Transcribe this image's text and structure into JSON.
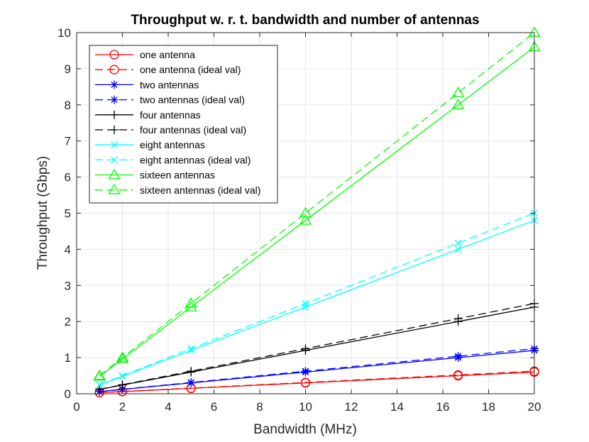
{
  "chart_data": {
    "type": "line",
    "title": "Throughput w. r. t. bandwidth and number of antennas",
    "xlabel": "Bandwidth (MHz)",
    "ylabel": "Throughput (Gbps)",
    "xlim": [
      0,
      20
    ],
    "ylim": [
      0,
      10
    ],
    "xticks": [
      "0",
      "2",
      "4",
      "6",
      "8",
      "10",
      "12",
      "14",
      "16",
      "18",
      "20"
    ],
    "yticks": [
      "0",
      "1",
      "2",
      "3",
      "4",
      "5",
      "6",
      "7",
      "8",
      "9",
      "10"
    ],
    "grid": true,
    "legend_position": "top-left",
    "x": [
      1,
      2,
      5,
      10,
      16.67,
      20
    ],
    "series": [
      {
        "name": "one antenna",
        "color": "#ff0000",
        "dash": "solid",
        "marker": "circle",
        "values": [
          0.03,
          0.06,
          0.15,
          0.3,
          0.5,
          0.6
        ]
      },
      {
        "name": "one antenna (ideal val)",
        "color": "#ff0000",
        "dash": "dashed",
        "marker": "circle",
        "values": [
          0.031,
          0.0625,
          0.156,
          0.3125,
          0.52,
          0.625
        ]
      },
      {
        "name": "two antennas",
        "color": "#0000ff",
        "dash": "solid",
        "marker": "star",
        "values": [
          0.06,
          0.12,
          0.3,
          0.6,
          1.0,
          1.2
        ]
      },
      {
        "name": "two antennas (ideal val)",
        "color": "#0000ff",
        "dash": "dashed",
        "marker": "star",
        "values": [
          0.0625,
          0.125,
          0.3125,
          0.625,
          1.04,
          1.25
        ]
      },
      {
        "name": "four antennas",
        "color": "#000000",
        "dash": "solid",
        "marker": "plus",
        "values": [
          0.12,
          0.24,
          0.6,
          1.2,
          2.0,
          2.4
        ]
      },
      {
        "name": "four antennas (ideal val)",
        "color": "#000000",
        "dash": "dashed",
        "marker": "plus",
        "values": [
          0.125,
          0.25,
          0.625,
          1.25,
          2.08,
          2.5
        ]
      },
      {
        "name": "eight antennas",
        "color": "#00ffff",
        "dash": "solid",
        "marker": "x",
        "values": [
          0.24,
          0.48,
          1.2,
          2.4,
          4.0,
          4.8
        ]
      },
      {
        "name": "eight antennas (ideal val)",
        "color": "#00ffff",
        "dash": "dashed",
        "marker": "x",
        "values": [
          0.25,
          0.5,
          1.25,
          2.5,
          4.17,
          5.0
        ]
      },
      {
        "name": "sixteen antennas",
        "color": "#00ff00",
        "dash": "solid",
        "marker": "triangle",
        "values": [
          0.48,
          0.96,
          2.4,
          4.8,
          8.0,
          9.6
        ]
      },
      {
        "name": "sixteen antennas (ideal val)",
        "color": "#00ff00",
        "dash": "dashed",
        "marker": "triangle",
        "values": [
          0.5,
          1.0,
          2.5,
          5.0,
          8.33,
          10.0
        ]
      }
    ]
  }
}
